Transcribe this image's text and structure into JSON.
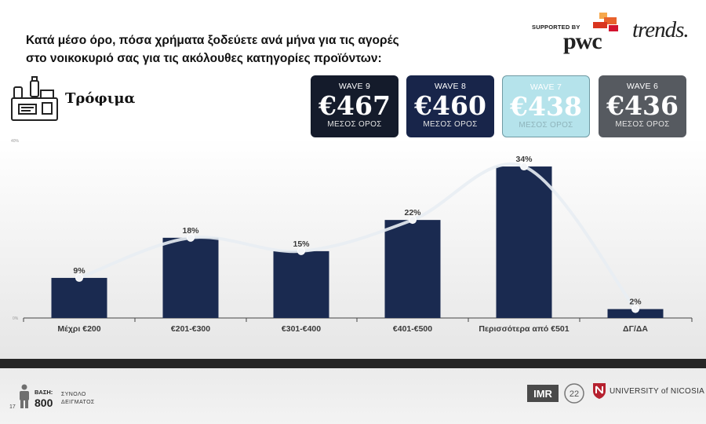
{
  "header": {
    "title_line1": "Κατά μέσο όρο, πόσα χρήματα ξοδεύετε ανά μήνα για τις αγορές",
    "title_line2": "στο νοικοκυριό σας για τις ακόλουθες κατηγορίες προϊόντων:",
    "supported_by": "SUPPORTED BY",
    "pwc": "pwc",
    "trends": "trends."
  },
  "category": {
    "label": "Τρόφιμα",
    "icon": "grocery-basket-icon"
  },
  "waves": [
    {
      "label": "WAVE 9",
      "value": "€467",
      "sub": "ΜΕΣΟΣ ΟΡΟΣ",
      "bg": "#141b2b",
      "fg": "#ffffff",
      "sub_color": "#e3e3e3"
    },
    {
      "label": "WAVE 8",
      "value": "€460",
      "sub": "ΜΕΣΟΣ ΟΡΟΣ",
      "bg": "#18254a",
      "fg": "#ffffff",
      "sub_color": "#e3e3e3"
    },
    {
      "label": "WAVE 7",
      "value": "€438",
      "sub": "ΜΕΣΟΣ ΟΡΟΣ",
      "bg": "#b5e3eb",
      "fg": "#ffffff",
      "sub_color": "#8fb4bb"
    },
    {
      "label": "WAVE 6",
      "value": "€436",
      "sub": "ΜΕΣΟΣ ΟΡΟΣ",
      "bg": "#565a60",
      "fg": "#ffffff",
      "sub_color": "#e3e3e3"
    }
  ],
  "chart_data": {
    "type": "bar",
    "categories": [
      "Μέχρι €200",
      "€201-€300",
      "€301-€400",
      "€401-€500",
      "Περισσότερα από €501",
      "ΔΓ/ΔΑ"
    ],
    "values": [
      9,
      18,
      15,
      22,
      34,
      2
    ],
    "data_labels": [
      "9%",
      "18%",
      "15%",
      "22%",
      "34%",
      "2%"
    ],
    "y_ticks": [
      "40%",
      "0%"
    ],
    "ylim": [
      0,
      40
    ],
    "overlay_line": "smoothed trend through bar tops",
    "bar_color": "#1a2a50",
    "line_color": "#e8edf3",
    "grid": false
  },
  "footer": {
    "basi_label": "ΒΑΣΗ:",
    "basi_value": "800",
    "sample_line1": "ΣΥΝΟΛΟ",
    "sample_line2": "ΔΕΙΓΜΑΤΟΣ",
    "page_number": "17",
    "imr": "IMR",
    "university": "UNIVERSITY of NICOSIA"
  }
}
